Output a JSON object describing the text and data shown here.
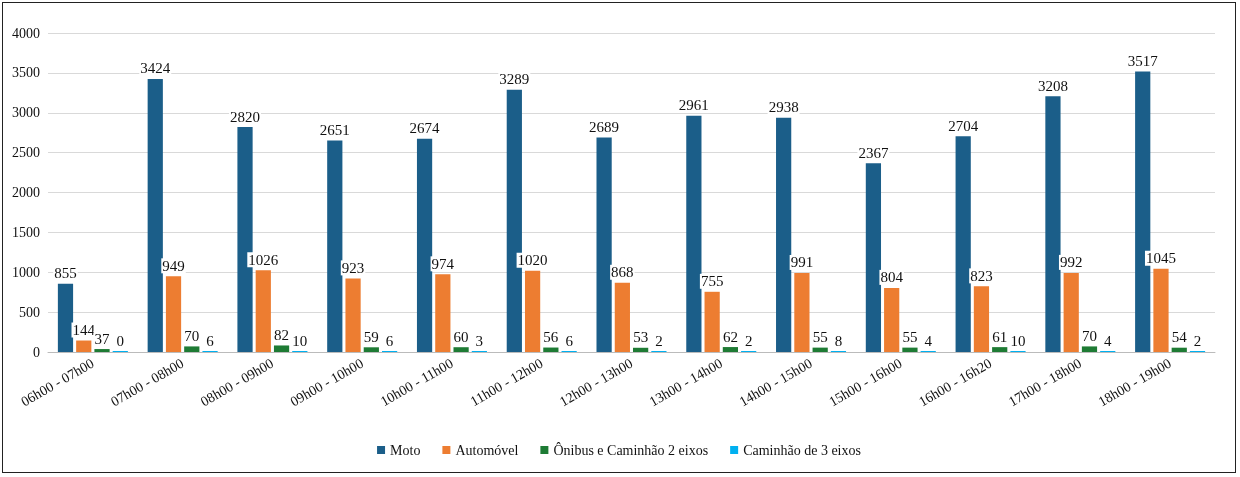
{
  "chart_data": {
    "type": "bar",
    "categories": [
      "06h00 - 07h00",
      "07h00 - 08h00",
      "08h00 - 09h00",
      "09h00 - 10h00",
      "10h00 - 11h00",
      "11h00 - 12h00",
      "12h00 - 13h00",
      "13h00 - 14h00",
      "14h00 - 15h00",
      "15h00 - 16h00",
      "16h00 - 16h20",
      "17h00 - 18h00",
      "18h00 - 19h00"
    ],
    "series": [
      {
        "name": "Moto",
        "color": "#1b5e89",
        "values": [
          855,
          3424,
          2820,
          2651,
          2674,
          3289,
          2689,
          2961,
          2938,
          2367,
          2704,
          3208,
          3517
        ]
      },
      {
        "name": "Automóvel",
        "color": "#ed7d31",
        "values": [
          144,
          949,
          1026,
          923,
          974,
          1020,
          868,
          755,
          991,
          804,
          823,
          992,
          1045
        ]
      },
      {
        "name": "Ônibus e Caminhão 2 eixos",
        "color": "#1e7b34",
        "values": [
          37,
          70,
          82,
          59,
          60,
          56,
          53,
          62,
          55,
          55,
          61,
          70,
          54
        ]
      },
      {
        "name": "Caminhão de 3 eixos",
        "color": "#00b0f0",
        "values": [
          0,
          6,
          10,
          6,
          3,
          6,
          2,
          2,
          8,
          4,
          10,
          4,
          2
        ]
      }
    ],
    "ylim": [
      0,
      4000
    ],
    "yticks": [
      0,
      500,
      1000,
      1500,
      2000,
      2500,
      3000,
      3500,
      4000
    ],
    "grid": "y",
    "legend": "bottom",
    "data_labels": true
  }
}
